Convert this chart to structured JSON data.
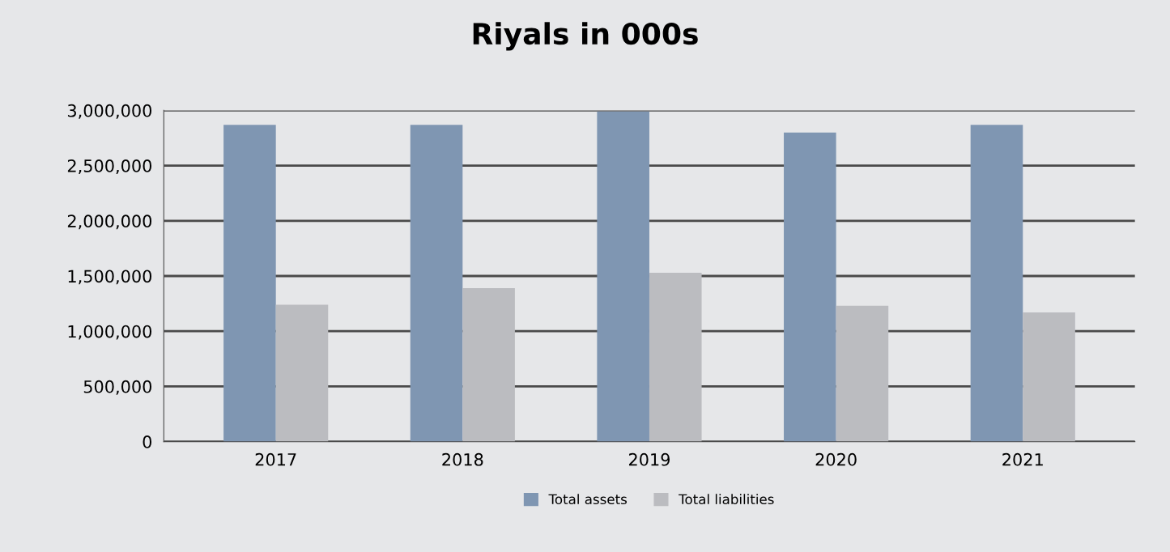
{
  "chart_data": {
    "type": "bar",
    "title": "Riyals in 000s",
    "categories": [
      "2017",
      "2018",
      "2019",
      "2020",
      "2021"
    ],
    "series": [
      {
        "name": "Total assets",
        "color": "#7f96b2",
        "values": [
          2870000,
          2870000,
          2990000,
          2800000,
          2870000
        ]
      },
      {
        "name": "Total liabilities",
        "color": "#bbbcc0",
        "values": [
          1240000,
          1390000,
          1530000,
          1230000,
          1170000
        ]
      }
    ],
    "ylim": [
      0,
      3000000
    ],
    "yticks": [
      {
        "value": 0,
        "label": "0"
      },
      {
        "value": 500000,
        "label": "500,000"
      },
      {
        "value": 1000000,
        "label": "1,000,000"
      },
      {
        "value": 1500000,
        "label": "1,500,000"
      },
      {
        "value": 2000000,
        "label": "2,000,000"
      },
      {
        "value": 2500000,
        "label": "2,500,000"
      },
      {
        "value": 3000000,
        "label": "3,000,000"
      }
    ],
    "grid": "y",
    "legend": "bottom"
  }
}
